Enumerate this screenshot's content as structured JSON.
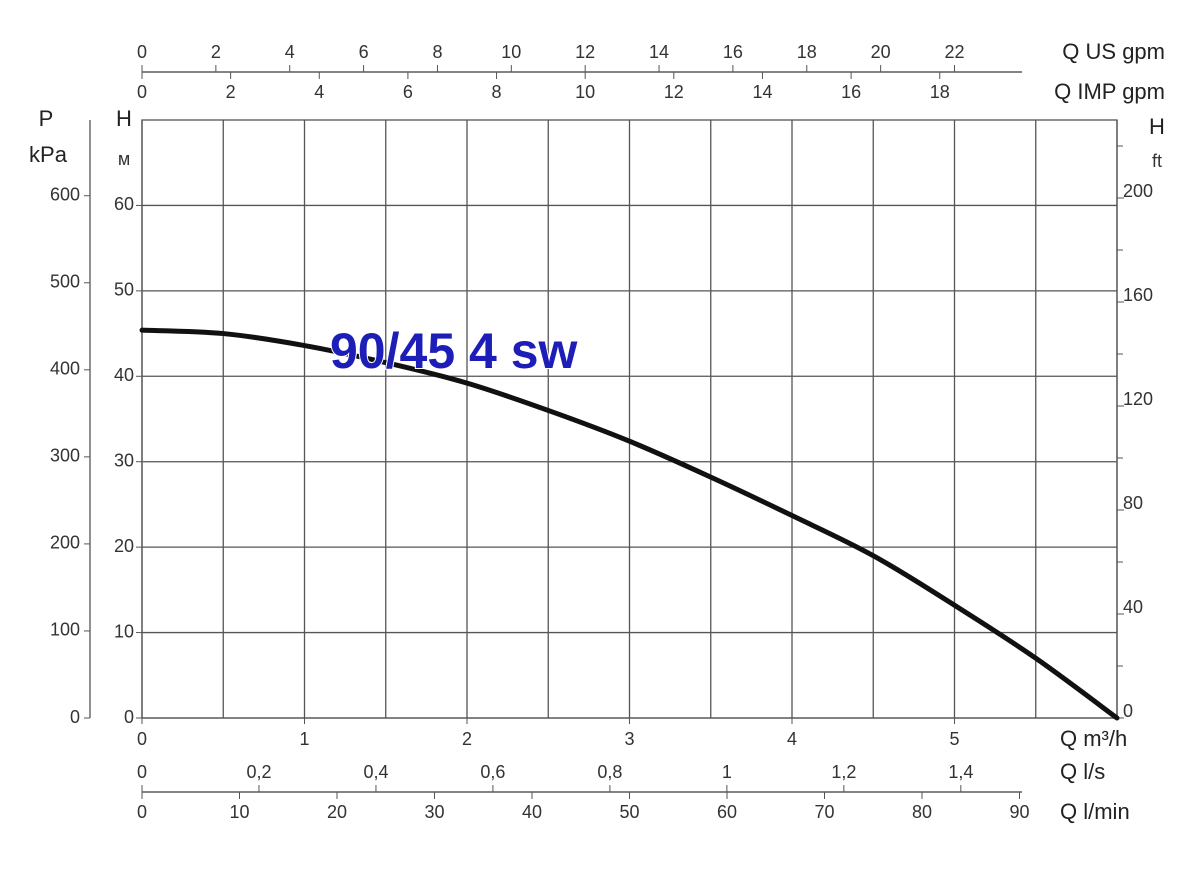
{
  "chart_data": {
    "type": "line",
    "x": [
      0,
      0.5,
      1,
      1.5,
      2,
      2.5,
      3,
      3.5,
      4,
      4.5,
      5,
      5.5,
      6
    ],
    "series": [
      {
        "name": "90/45 4 sw",
        "color": "#111111",
        "values": [
          45.4,
          45,
          43.6,
          41.6,
          39.2,
          36,
          32.4,
          28.2,
          23.7,
          19,
          13.2,
          7,
          0
        ]
      }
    ],
    "xlabel": "Q m³/h",
    "xlim": [
      0,
      6
    ],
    "xticks": [
      0,
      1,
      2,
      3,
      4,
      5
    ],
    "x_grid": [
      0,
      0.5,
      1,
      1.5,
      2,
      2.5,
      3,
      3.5,
      4,
      4.5,
      5,
      5.5,
      6
    ],
    "ylabel": "H",
    "yunit": "м",
    "ylim": [
      0,
      70
    ],
    "yticks": [
      0,
      10,
      20,
      30,
      40,
      50,
      60
    ],
    "y2label": "H",
    "y2unit": "ft",
    "y2lim": [
      0,
      230
    ],
    "y2ticks": [
      0,
      40,
      80,
      120,
      160,
      200
    ],
    "y2minor": [
      20,
      60,
      100,
      140,
      180,
      220
    ],
    "p_axis": {
      "label": "P",
      "unit": "kPa",
      "lim": [
        0,
        687
      ],
      "ticks": [
        0,
        100,
        200,
        300,
        400,
        500,
        600
      ]
    },
    "extra_x_axes": [
      {
        "label": "Q US gpm",
        "side": "top",
        "lim": [
          0,
          26.4
        ],
        "ticks": [
          0,
          2,
          4,
          6,
          8,
          10,
          12,
          14,
          16,
          18,
          20,
          22
        ]
      },
      {
        "label": "Q IMP gpm",
        "side": "top",
        "lim": [
          0,
          22
        ],
        "ticks": [
          0,
          2,
          4,
          6,
          8,
          10,
          12,
          14,
          16,
          18
        ]
      },
      {
        "label": "Q l/s",
        "side": "bottom",
        "lim": [
          0,
          1.667
        ],
        "ticks": [
          0,
          {
            "value": 0.2,
            "label": "0,2"
          },
          {
            "value": 0.4,
            "label": "0,4"
          },
          {
            "value": 0.6,
            "label": "0,6"
          },
          {
            "value": 0.8,
            "label": "0,8"
          },
          1,
          {
            "value": 1.2,
            "label": "1,2"
          },
          {
            "value": 1.4,
            "label": "1,4"
          }
        ]
      },
      {
        "label": "Q l/min",
        "side": "bottom",
        "lim": [
          0,
          100
        ],
        "ticks": [
          0,
          10,
          20,
          30,
          40,
          50,
          60,
          70,
          80,
          90
        ]
      }
    ],
    "grid": true
  }
}
